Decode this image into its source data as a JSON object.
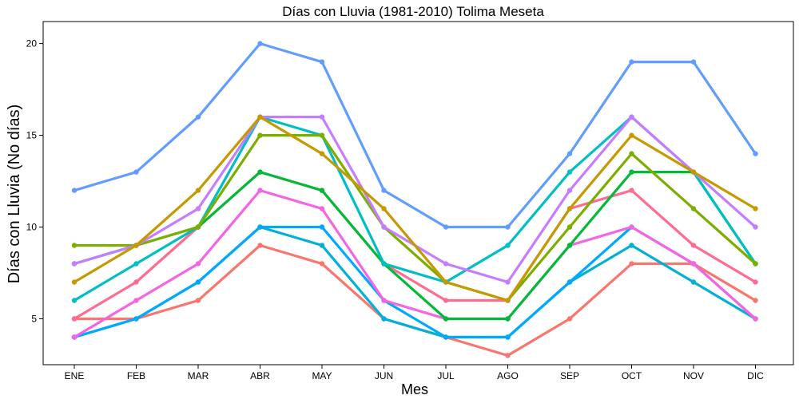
{
  "chart_data": {
    "type": "line",
    "title": "Días con Lluvia (1981-2010)  Tolima Meseta",
    "xlabel": "Mes",
    "ylabel": "Días con Lluvia (No días)",
    "categories": [
      "ENE",
      "FEB",
      "MAR",
      "ABR",
      "MAY",
      "JUN",
      "JUL",
      "AGO",
      "SEP",
      "OCT",
      "NOV",
      "DIC"
    ],
    "ylim": [
      2.5,
      21.2
    ],
    "yticks": [
      5,
      10,
      15,
      20
    ],
    "grid": false,
    "legend": "none",
    "series": [
      {
        "color": "#F8766D",
        "values": [
          5,
          5,
          6,
          9,
          8,
          5,
          4,
          3,
          5,
          8,
          8,
          6
        ]
      },
      {
        "color": "#00B0D8",
        "values": [
          4,
          5,
          7,
          10,
          9,
          5,
          4,
          4,
          7,
          9,
          7,
          5
        ]
      },
      {
        "color": "#00A9FF",
        "values": [
          4,
          5,
          7,
          10,
          10,
          6,
          4,
          4,
          7,
          10,
          8,
          5
        ]
      },
      {
        "color": "#F564E3",
        "values": [
          4,
          6,
          8,
          12,
          11,
          6,
          5,
          5,
          9,
          10,
          8,
          5
        ]
      },
      {
        "color": "#FF6C91",
        "values": [
          5,
          7,
          10,
          13,
          12,
          8,
          6,
          6,
          11,
          12,
          9,
          7
        ]
      },
      {
        "color": "#00BA38",
        "values": [
          8,
          9,
          10,
          13,
          12,
          8,
          5,
          5,
          9,
          13,
          13,
          8
        ]
      },
      {
        "color": "#00BFC4",
        "values": [
          6,
          8,
          10,
          16,
          15,
          8,
          7,
          9,
          13,
          16,
          13,
          8
        ]
      },
      {
        "color": "#7CAE00",
        "values": [
          9,
          9,
          10,
          15,
          15,
          10,
          7,
          6,
          10,
          14,
          11,
          8
        ]
      },
      {
        "color": "#C77CFF",
        "values": [
          8,
          9,
          11,
          16,
          16,
          10,
          8,
          7,
          12,
          16,
          13,
          10
        ]
      },
      {
        "color": "#C49A00",
        "values": [
          7,
          9,
          12,
          16,
          14,
          11,
          7,
          6,
          11,
          15,
          13,
          11
        ]
      },
      {
        "color": "#619CFF",
        "values": [
          12,
          13,
          16,
          20,
          19,
          12,
          10,
          10,
          14,
          19,
          19,
          14
        ]
      }
    ]
  }
}
